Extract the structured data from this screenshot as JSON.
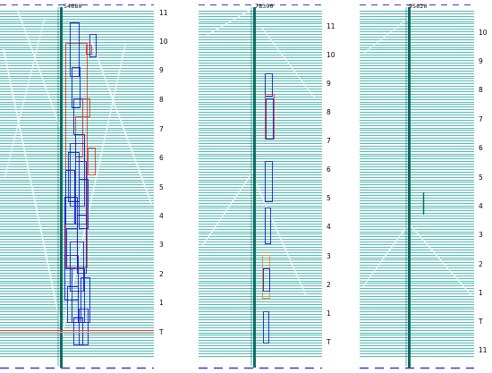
{
  "colors": {
    "trace": "#1aa59a",
    "trace_dark": "#0b6d64",
    "box_blue": "#1a1acc",
    "box_red": "#e23a2a",
    "box_orange": "#f08a1a",
    "dash": "#3a3ad6"
  },
  "panels": [
    {
      "id_label": "54680",
      "ticks": [
        "11",
        "10",
        "9",
        "8",
        "7",
        "6",
        "5",
        "4",
        "3",
        "2",
        "1",
        "T"
      ]
    },
    {
      "id_label": "78390",
      "ticks": [
        "11",
        "10",
        "9",
        "8",
        "7",
        "6",
        "5",
        "4",
        "3",
        "2",
        "1",
        "T"
      ]
    },
    {
      "id_label": "95620",
      "ticks": [
        "10",
        "9",
        "8",
        "7",
        "6",
        "5",
        "4",
        "3",
        "2",
        "1",
        "T",
        "11"
      ]
    }
  ]
}
